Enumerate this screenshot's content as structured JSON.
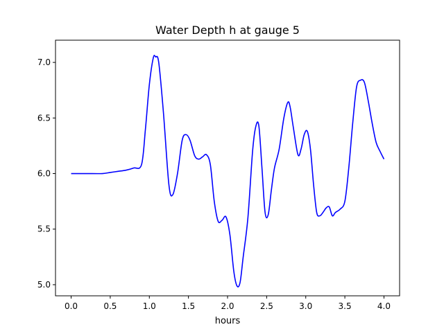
{
  "chart_data": {
    "type": "line",
    "title": "Water Depth h at gauge 5",
    "xlabel": "hours",
    "ylabel": "",
    "xlim": [
      -0.2,
      4.2
    ],
    "ylim": [
      4.9,
      7.2
    ],
    "xticks": [
      0.0,
      0.5,
      1.0,
      1.5,
      2.0,
      2.5,
      3.0,
      3.5,
      4.0
    ],
    "xtick_labels": [
      "0.0",
      "0.5",
      "1.0",
      "1.5",
      "2.0",
      "2.5",
      "3.0",
      "3.5",
      "4.0"
    ],
    "yticks": [
      5.0,
      5.5,
      6.0,
      6.5,
      7.0
    ],
    "ytick_labels": [
      "5.0",
      "5.5",
      "6.0",
      "6.5",
      "7.0"
    ],
    "grid": false,
    "legend": "none",
    "series": [
      {
        "color": "#0000ff",
        "x": [
          0.0,
          0.2,
          0.4,
          0.5,
          0.6,
          0.7,
          0.8,
          0.9,
          0.95,
          1.0,
          1.05,
          1.08,
          1.12,
          1.18,
          1.25,
          1.3,
          1.36,
          1.42,
          1.47,
          1.52,
          1.58,
          1.63,
          1.68,
          1.73,
          1.78,
          1.83,
          1.88,
          1.93,
          1.98,
          2.03,
          2.08,
          2.12,
          2.16,
          2.2,
          2.26,
          2.32,
          2.36,
          2.4,
          2.44,
          2.48,
          2.52,
          2.56,
          2.6,
          2.66,
          2.72,
          2.77,
          2.8,
          2.84,
          2.9,
          2.94,
          2.98,
          3.02,
          3.06,
          3.1,
          3.14,
          3.18,
          3.22,
          3.26,
          3.3,
          3.34,
          3.38,
          3.44,
          3.5,
          3.55,
          3.6,
          3.65,
          3.7,
          3.75,
          3.8,
          3.85,
          3.9,
          3.95,
          4.0
        ],
        "y": [
          6.0,
          6.0,
          6.0,
          6.01,
          6.02,
          6.03,
          6.05,
          6.08,
          6.4,
          6.8,
          7.04,
          7.05,
          7.0,
          6.55,
          5.9,
          5.81,
          6.0,
          6.3,
          6.35,
          6.3,
          6.16,
          6.13,
          6.15,
          6.17,
          6.08,
          5.75,
          5.57,
          5.58,
          5.61,
          5.45,
          5.12,
          4.99,
          5.02,
          5.25,
          5.6,
          6.2,
          6.42,
          6.43,
          6.05,
          5.65,
          5.63,
          5.85,
          6.05,
          6.22,
          6.5,
          6.64,
          6.6,
          6.42,
          6.17,
          6.22,
          6.35,
          6.38,
          6.22,
          5.9,
          5.65,
          5.62,
          5.65,
          5.69,
          5.7,
          5.62,
          5.65,
          5.68,
          5.75,
          6.05,
          6.45,
          6.78,
          6.84,
          6.82,
          6.65,
          6.45,
          6.28,
          6.2,
          6.13
        ]
      }
    ]
  }
}
